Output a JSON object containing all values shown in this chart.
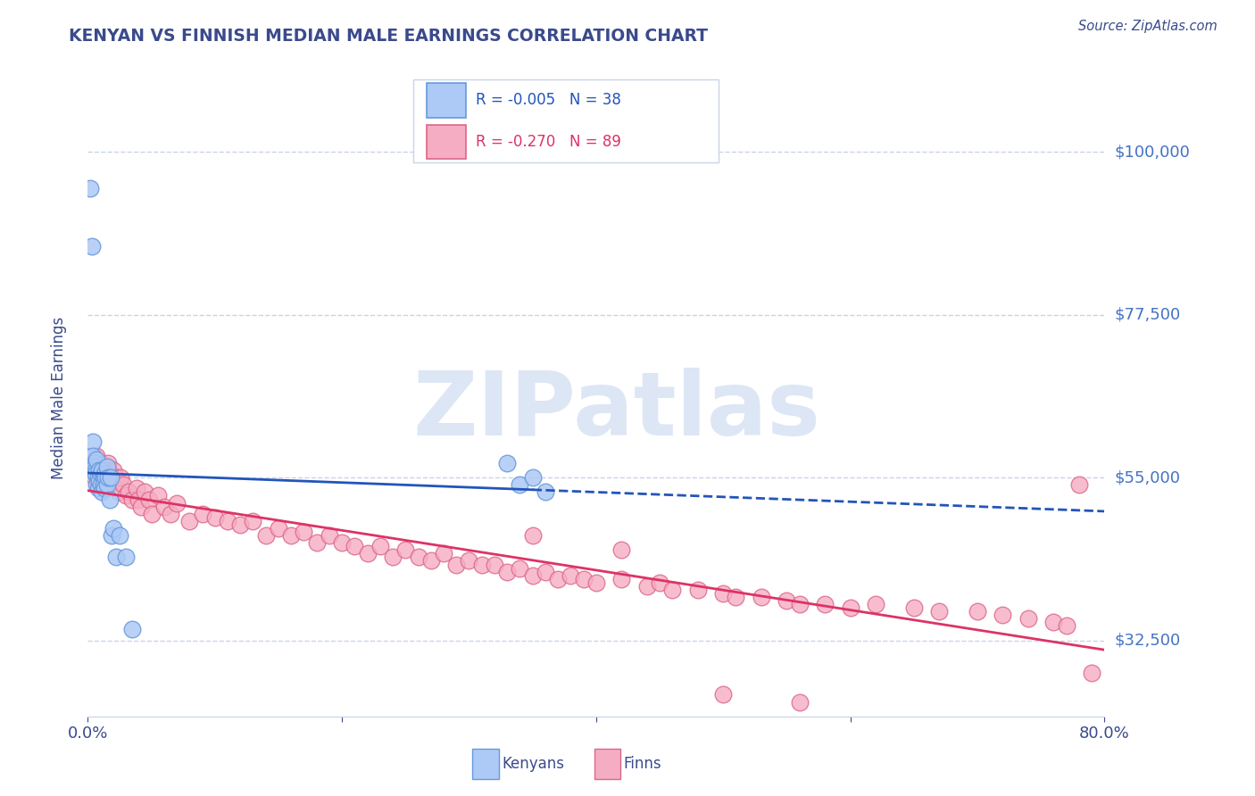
{
  "title": "KENYAN VS FINNISH MEDIAN MALE EARNINGS CORRELATION CHART",
  "source_text": "Source: ZipAtlas.com",
  "ylabel": "Median Male Earnings",
  "xlim": [
    0.0,
    0.8
  ],
  "ylim": [
    22000,
    110000
  ],
  "yticks": [
    32500,
    55000,
    77500,
    100000
  ],
  "ytick_labels": [
    "$32,500",
    "$55,000",
    "$77,500",
    "$100,000"
  ],
  "xticks": [
    0.0,
    0.2,
    0.4,
    0.6,
    0.8
  ],
  "xtick_labels": [
    "0.0%",
    "",
    "",
    "",
    "80.0%"
  ],
  "title_color": "#3a4a8c",
  "axis_label_color": "#3a4a8c",
  "tick_color": "#3a4a8c",
  "right_tick_color": "#4472c4",
  "grid_color": "#c8d4e8",
  "watermark_text": "ZIPatlas",
  "watermark_color": "#dde6f5",
  "legend_R_kenyan": "R = -0.005",
  "legend_N_kenyan": "N = 38",
  "legend_R_finn": "R = -0.270",
  "legend_N_finn": "N = 89",
  "kenyan_color": "#adc9f5",
  "finn_color": "#f5adc4",
  "kenyan_edge": "#6699dd",
  "finn_edge": "#dd6688",
  "trend_kenyan_color": "#2255bb",
  "trend_finn_color": "#dd3366",
  "background_color": "#ffffff",
  "kenyan_points_x": [
    0.002,
    0.003,
    0.004,
    0.004,
    0.005,
    0.005,
    0.006,
    0.006,
    0.007,
    0.007,
    0.008,
    0.008,
    0.009,
    0.009,
    0.01,
    0.01,
    0.011,
    0.011,
    0.012,
    0.012,
    0.013,
    0.013,
    0.014,
    0.015,
    0.015,
    0.016,
    0.017,
    0.018,
    0.019,
    0.02,
    0.022,
    0.025,
    0.03,
    0.035,
    0.33,
    0.34,
    0.35,
    0.36
  ],
  "kenyan_points_y": [
    95000,
    87000,
    60000,
    58000,
    57000,
    56500,
    56000,
    55500,
    57500,
    54000,
    55000,
    53500,
    56000,
    54500,
    55500,
    54000,
    56000,
    53000,
    55000,
    54000,
    55500,
    53500,
    55000,
    56500,
    54000,
    55000,
    52000,
    55000,
    47000,
    48000,
    44000,
    47000,
    44000,
    34000,
    57000,
    54000,
    55000,
    53000
  ],
  "finn_points_x": [
    0.003,
    0.005,
    0.007,
    0.008,
    0.01,
    0.011,
    0.013,
    0.014,
    0.015,
    0.016,
    0.017,
    0.018,
    0.02,
    0.022,
    0.024,
    0.026,
    0.028,
    0.03,
    0.032,
    0.035,
    0.038,
    0.04,
    0.042,
    0.045,
    0.048,
    0.05,
    0.055,
    0.06,
    0.065,
    0.07,
    0.08,
    0.09,
    0.1,
    0.11,
    0.12,
    0.13,
    0.14,
    0.15,
    0.16,
    0.17,
    0.18,
    0.19,
    0.2,
    0.21,
    0.22,
    0.23,
    0.24,
    0.25,
    0.26,
    0.27,
    0.28,
    0.29,
    0.3,
    0.31,
    0.32,
    0.33,
    0.34,
    0.35,
    0.36,
    0.37,
    0.38,
    0.39,
    0.4,
    0.42,
    0.44,
    0.45,
    0.46,
    0.48,
    0.5,
    0.51,
    0.53,
    0.55,
    0.56,
    0.58,
    0.6,
    0.62,
    0.65,
    0.67,
    0.7,
    0.72,
    0.74,
    0.76,
    0.77,
    0.78,
    0.79,
    0.35,
    0.42,
    0.5,
    0.56
  ],
  "finn_points_y": [
    57000,
    55000,
    58000,
    54000,
    57000,
    55500,
    56000,
    55000,
    55000,
    57000,
    54000,
    55500,
    56000,
    55000,
    53000,
    55000,
    54000,
    52500,
    53000,
    52000,
    53500,
    52000,
    51000,
    53000,
    52000,
    50000,
    52500,
    51000,
    50000,
    51500,
    49000,
    50000,
    49500,
    49000,
    48500,
    49000,
    47000,
    48000,
    47000,
    47500,
    46000,
    47000,
    46000,
    45500,
    44500,
    45500,
    44000,
    45000,
    44000,
    43500,
    44500,
    43000,
    43500,
    43000,
    43000,
    42000,
    42500,
    41500,
    42000,
    41000,
    41500,
    41000,
    40500,
    41000,
    40000,
    40500,
    39500,
    39500,
    39000,
    38500,
    38500,
    38000,
    37500,
    37500,
    37000,
    37500,
    37000,
    36500,
    36500,
    36000,
    35500,
    35000,
    34500,
    54000,
    28000,
    47000,
    45000,
    25000,
    24000
  ]
}
